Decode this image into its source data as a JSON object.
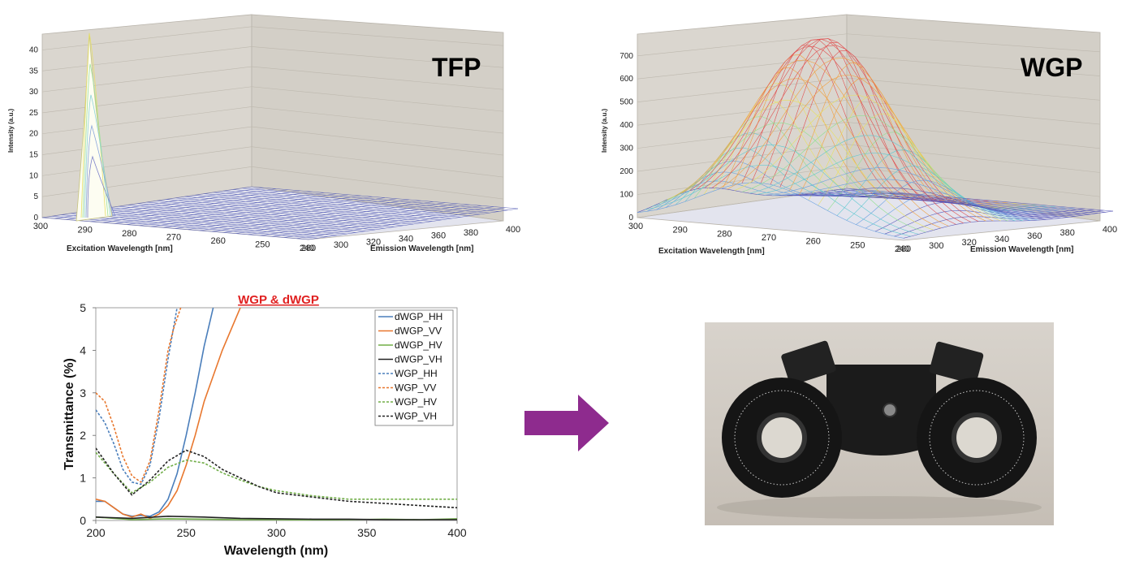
{
  "chart_data": [
    {
      "type": "surface",
      "label": "TFP",
      "zlabel": "Intensity (a.u.)",
      "xlabel": "Excitation Wavelength [nm]",
      "ylabel": "Emission Wavelength [nm]",
      "zticks": [
        "0",
        "5",
        "10",
        "15",
        "20",
        "25",
        "30",
        "35",
        "40"
      ],
      "xticks": [
        "300",
        "290",
        "280",
        "270",
        "260",
        "250",
        "240"
      ],
      "yticks": [
        "280",
        "300",
        "320",
        "340",
        "360",
        "380",
        "400"
      ],
      "zlim": [
        0,
        43
      ],
      "peak": {
        "excitation": 280,
        "emission": 285,
        "intensity": 44
      }
    },
    {
      "type": "surface",
      "label": "WGP",
      "zlabel": "Intensity (a.u.)",
      "xlabel": "Excitation Wavelength [nm]",
      "ylabel": "Emission Wavelength [nm]",
      "zticks": [
        "0",
        "100",
        "200",
        "300",
        "400",
        "500",
        "600",
        "700"
      ],
      "xticks": [
        "300",
        "290",
        "280",
        "270",
        "260",
        "250",
        "240"
      ],
      "yticks": [
        "280",
        "300",
        "320",
        "340",
        "360",
        "380",
        "400"
      ],
      "zlim": [
        0,
        780
      ],
      "peak": {
        "excitation": 262,
        "emission": 335,
        "intensity": 785
      }
    },
    {
      "type": "line",
      "title": "WGP & dWGP",
      "xlabel": "Wavelength (nm)",
      "ylabel": "Transmittance  (%)",
      "xlim": [
        200,
        400
      ],
      "ylim": [
        0,
        5
      ],
      "xticks": [
        "200",
        "250",
        "300",
        "350",
        "400"
      ],
      "yticks": [
        "0",
        "1",
        "2",
        "3",
        "4",
        "5"
      ],
      "legend_position": "top-right",
      "series": [
        {
          "name": "dWGP_HH",
          "style": "solid",
          "color": "#4a7ebb",
          "x": [
            200,
            205,
            210,
            215,
            220,
            225,
            230,
            235,
            240,
            245,
            250,
            255,
            260,
            265
          ],
          "y": [
            0.45,
            0.45,
            0.3,
            0.15,
            0.1,
            0.12,
            0.1,
            0.2,
            0.5,
            1.1,
            2.0,
            3.0,
            4.1,
            5.0
          ]
        },
        {
          "name": "dWGP_VV",
          "style": "solid",
          "color": "#e8772e",
          "x": [
            200,
            205,
            210,
            215,
            220,
            225,
            230,
            235,
            240,
            245,
            250,
            255,
            260,
            270,
            280
          ],
          "y": [
            0.5,
            0.45,
            0.3,
            0.15,
            0.08,
            0.15,
            0.05,
            0.15,
            0.35,
            0.7,
            1.3,
            2.0,
            2.8,
            4.0,
            5.0
          ]
        },
        {
          "name": "dWGP_HV",
          "style": "solid",
          "color": "#70ad47",
          "x": [
            200,
            220,
            240,
            260,
            280,
            300,
            320,
            340,
            360,
            380,
            400
          ],
          "y": [
            0.08,
            0.02,
            0.04,
            0.03,
            0.02,
            0.02,
            0.01,
            0.02,
            0.03,
            0.02,
            0.04
          ]
        },
        {
          "name": "dWGP_VH",
          "style": "solid",
          "color": "#222222",
          "x": [
            200,
            220,
            240,
            260,
            280,
            300,
            320,
            340,
            360,
            380,
            400
          ],
          "y": [
            0.08,
            0.05,
            0.1,
            0.08,
            0.05,
            0.04,
            0.03,
            0.03,
            0.02,
            0.02,
            0.02
          ]
        },
        {
          "name": "WGP_HH",
          "style": "dashed",
          "color": "#4a7ebb",
          "x": [
            200,
            205,
            210,
            215,
            220,
            225,
            230,
            235,
            240,
            245
          ],
          "y": [
            2.6,
            2.3,
            1.8,
            1.2,
            0.9,
            0.85,
            1.3,
            2.4,
            3.8,
            5.0
          ]
        },
        {
          "name": "WGP_VV",
          "style": "dashed",
          "color": "#e8772e",
          "x": [
            200,
            205,
            210,
            215,
            220,
            225,
            230,
            235,
            240,
            243,
            247
          ],
          "y": [
            3.0,
            2.8,
            2.2,
            1.5,
            1.05,
            0.9,
            1.4,
            2.6,
            4.0,
            4.5,
            5.0
          ]
        },
        {
          "name": "WGP_HV",
          "style": "dashed",
          "color": "#70ad47",
          "x": [
            200,
            210,
            220,
            230,
            240,
            250,
            260,
            270,
            280,
            290,
            300,
            320,
            340,
            360,
            380,
            400
          ],
          "y": [
            1.6,
            1.1,
            0.65,
            0.9,
            1.25,
            1.42,
            1.35,
            1.12,
            0.95,
            0.8,
            0.7,
            0.58,
            0.5,
            0.5,
            0.5,
            0.5
          ]
        },
        {
          "name": "WGP_VH",
          "style": "dashed",
          "color": "#222222",
          "x": [
            200,
            210,
            220,
            230,
            240,
            250,
            260,
            270,
            280,
            290,
            300,
            320,
            340,
            360,
            380,
            400
          ],
          "y": [
            1.7,
            1.1,
            0.6,
            0.95,
            1.4,
            1.65,
            1.5,
            1.2,
            1.0,
            0.8,
            0.65,
            0.55,
            0.45,
            0.4,
            0.35,
            0.3
          ]
        }
      ]
    }
  ],
  "arrow": {
    "color": "#8e2b8e",
    "icon": "right-arrow-icon"
  },
  "photo": {
    "subject": "black dual rotation mount with graduated dials"
  }
}
